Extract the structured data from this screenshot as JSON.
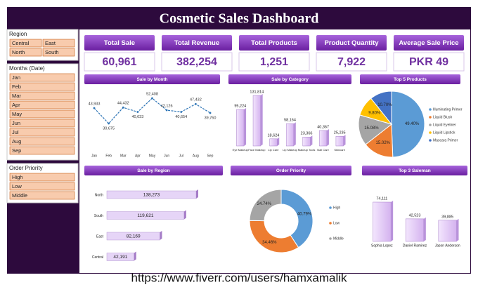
{
  "title": "Cosmetic Sales Dashboard",
  "footer": "https://www.fiverr.com/users/hamxamalik",
  "slicers": [
    {
      "title": "Region",
      "items": [
        "Central",
        "East",
        "North",
        "South"
      ]
    },
    {
      "title": "Months (Date)",
      "items": [
        "Jan",
        "Feb",
        "Mar",
        "Apr",
        "May",
        "Jun",
        "Jul",
        "Aug",
        "Sep"
      ]
    },
    {
      "title": "Order Priority",
      "items": [
        "High",
        "Low",
        "Middle"
      ]
    }
  ],
  "kpis": [
    {
      "label": "Total Sale",
      "value": "60,961"
    },
    {
      "label": "Total Revenue",
      "value": "382,254"
    },
    {
      "label": "Total Products",
      "value": "1,251"
    },
    {
      "label": "Product Quantity",
      "value": "7,922"
    },
    {
      "label": "Average Sale Price",
      "value": "PKR 49"
    }
  ],
  "chart_data": [
    {
      "type": "line",
      "title": "Sale by Month",
      "color": "#2e75b6",
      "categories": [
        "Jan",
        "Feb",
        "Mar",
        "Apr",
        "May",
        "Jun",
        "Jul",
        "Aug",
        "Sep"
      ],
      "values": [
        43933,
        30675,
        44432,
        40633,
        52408,
        42126,
        40654,
        47432,
        39760
      ],
      "value_labels": [
        "43,933",
        "30,675",
        "44,432",
        "40,633",
        "52,408",
        "42,126",
        "40,654",
        "47,432",
        "39,760"
      ]
    },
    {
      "type": "bar",
      "title": "Sale by Category",
      "color": "#e4cdf7",
      "categories": [
        "Eye Makeup",
        "Face Makeup",
        "Lip Care",
        "Lip Makeup",
        "Makeup Tools",
        "Nail Care",
        "Skincare"
      ],
      "values": [
        95224,
        131814,
        18624,
        58164,
        23366,
        40367,
        25235
      ],
      "value_labels": [
        "95,224",
        "131,814",
        "18,624",
        "58,164",
        "23,366",
        "40,367",
        "25,235"
      ]
    },
    {
      "type": "pie",
      "title": "Top 5 Products",
      "legend": "right",
      "categories": [
        "Illuminating Primer",
        "Liquid Blush",
        "Liquid Eyeliner",
        "Liquid Lipstick",
        "Mascara Primer"
      ],
      "values": [
        49.4,
        15.02,
        15.08,
        9.8,
        10.7
      ],
      "value_labels": [
        "49.40%",
        "15.02%",
        "15.08%",
        "9.80%",
        "10.70%"
      ],
      "colors": [
        "#5b9bd5",
        "#ed7d31",
        "#a5a5a5",
        "#ffc000",
        "#4472c4"
      ]
    },
    {
      "type": "bar",
      "orientation": "horizontal",
      "title": "Sale by Region",
      "color": "#e6d5f7",
      "categories": [
        "North",
        "South",
        "East",
        "Central"
      ],
      "values": [
        138273,
        119621,
        82169,
        42191
      ],
      "value_labels": [
        "138,273",
        "119,621",
        "82,169",
        "42,191"
      ]
    },
    {
      "type": "donut",
      "title": "Order Priority",
      "legend": "right",
      "categories": [
        "High",
        "Low",
        "Middle"
      ],
      "values": [
        40.79,
        34.46,
        24.74
      ],
      "value_labels": [
        "40.79%",
        "34.46%",
        "24.74%"
      ],
      "colors": [
        "#5b9bd5",
        "#ed7d31",
        "#a5a5a5"
      ]
    },
    {
      "type": "bar",
      "title": "Top 3 Saleman",
      "color": "#e4cdf7",
      "categories": [
        "Sophia Lopez",
        "Daniel Ramirez",
        "Jason Anderson"
      ],
      "values": [
        74111,
        42523,
        39885
      ],
      "value_labels": [
        "74,111",
        "42,523",
        "39,885"
      ]
    }
  ]
}
